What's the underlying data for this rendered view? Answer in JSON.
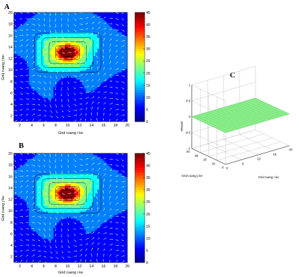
{
  "figure_labels": [
    "A",
    "B",
    "C"
  ],
  "colors": {
    "colormap": [
      "#00008f",
      "#0000ff",
      "#0080ff",
      "#00ffff",
      "#80ff80",
      "#ffff00",
      "#ff8000",
      "#ff0000",
      "#800000"
    ],
    "arrow": "#ffffff",
    "surface": "#98f598",
    "surface_grid": "#58cf58"
  },
  "chart_data": [
    {
      "panel": "A",
      "type": "heatmap",
      "overlay": "quiver",
      "xlabel": "Grid ruang i ke",
      "ylabel": "Grid ruang j ke-",
      "xlim": [
        1,
        20
      ],
      "ylim": [
        1,
        20
      ],
      "xticks": [
        "2",
        "4",
        "6",
        "8",
        "10",
        "12",
        "14",
        "16",
        "18",
        "20"
      ],
      "yticks": [
        "2",
        "4",
        "6",
        "8",
        "10",
        "12",
        "14",
        "16",
        "18",
        "20"
      ],
      "colorbar": {
        "range": [
          0,
          45
        ],
        "ticks": [
          "0",
          "5",
          "10",
          "15",
          "20",
          "25",
          "30",
          "35",
          "40",
          "45"
        ]
      },
      "peak": {
        "x": 10,
        "y": 13,
        "value": 45
      },
      "grid": false
    },
    {
      "panel": "B",
      "type": "heatmap",
      "overlay": "quiver",
      "xlabel": "Grid ruang i ke",
      "ylabel": "Grid ruang j ke-",
      "xlim": [
        1,
        20
      ],
      "ylim": [
        1,
        20
      ],
      "xticks": [
        "2",
        "4",
        "6",
        "8",
        "10",
        "12",
        "14",
        "16",
        "18",
        "20"
      ],
      "yticks": [
        "2",
        "4",
        "6",
        "8",
        "10",
        "12",
        "14",
        "16",
        "18",
        "20"
      ],
      "colorbar": {
        "range": [
          0,
          45
        ],
        "ticks": [
          "0",
          "5",
          "10",
          "15",
          "20",
          "25",
          "30",
          "35",
          "40",
          "45"
        ]
      },
      "peak": {
        "x": 10,
        "y": 13,
        "value": 45
      },
      "grid": false
    },
    {
      "panel": "C",
      "type": "surface",
      "xlabel": "Grid ruang i ke",
      "ylabel": "Grid ruang j ke-",
      "zlabel": "elevasi",
      "xticks": [
        "0",
        "5",
        "10",
        "15",
        "20"
      ],
      "yticks": [
        "0",
        "10",
        "20",
        "30",
        "40"
      ],
      "zticks": [
        "-1",
        "-0.5",
        "0",
        "0.5",
        "1"
      ],
      "zlim": [
        -1,
        1
      ],
      "value": 0,
      "grid": true
    }
  ]
}
